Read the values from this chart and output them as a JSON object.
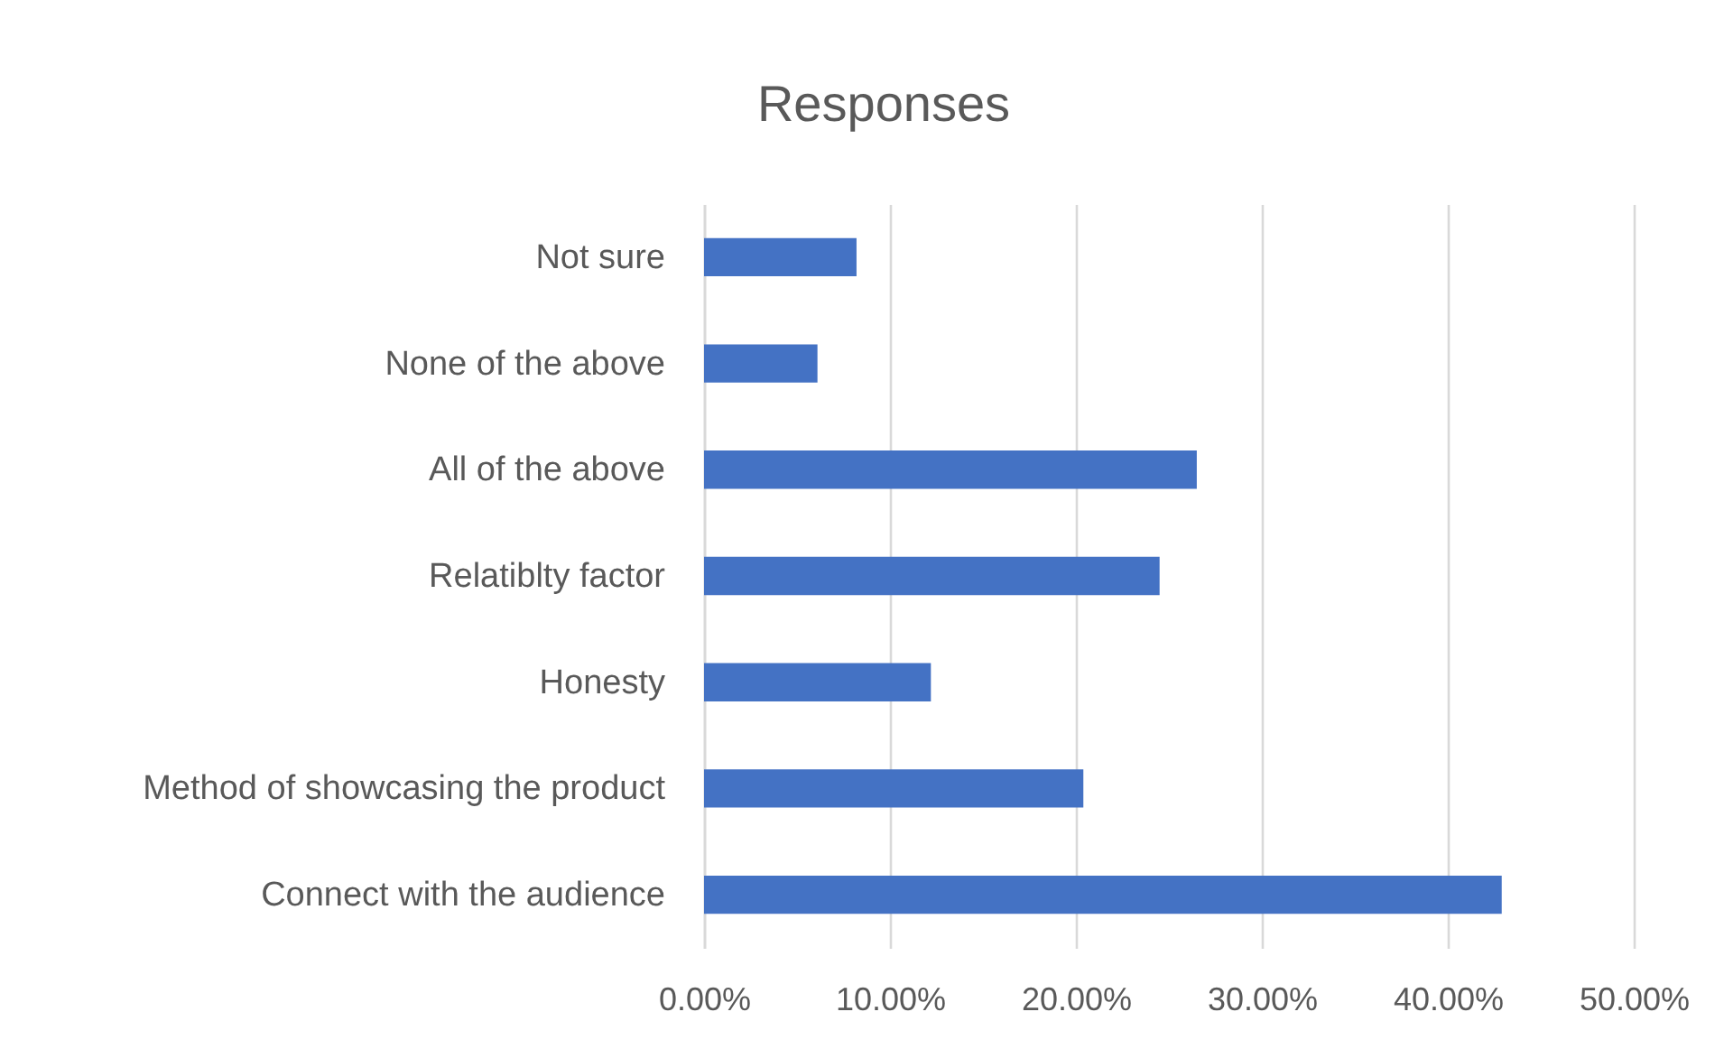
{
  "chart_data": {
    "type": "bar",
    "orientation": "horizontal",
    "title": "Responses",
    "categories": [
      "Not sure",
      "None of the above",
      "All of the above",
      "Relatiblty factor",
      "Honesty",
      "Method of showcasing the product",
      "Connect with the audience"
    ],
    "values": [
      8.2,
      6.1,
      26.5,
      24.5,
      12.2,
      20.4,
      42.9
    ],
    "color": "#4472c4",
    "xlim": [
      0,
      50
    ],
    "xticks": [
      {
        "value": 0,
        "label": "0.00%"
      },
      {
        "value": 10,
        "label": "10.00%"
      },
      {
        "value": 20,
        "label": "20.00%"
      },
      {
        "value": 30,
        "label": "30.00%"
      },
      {
        "value": 40,
        "label": "40.00%"
      },
      {
        "value": 50,
        "label": "50.00%"
      }
    ],
    "grid": "x"
  }
}
